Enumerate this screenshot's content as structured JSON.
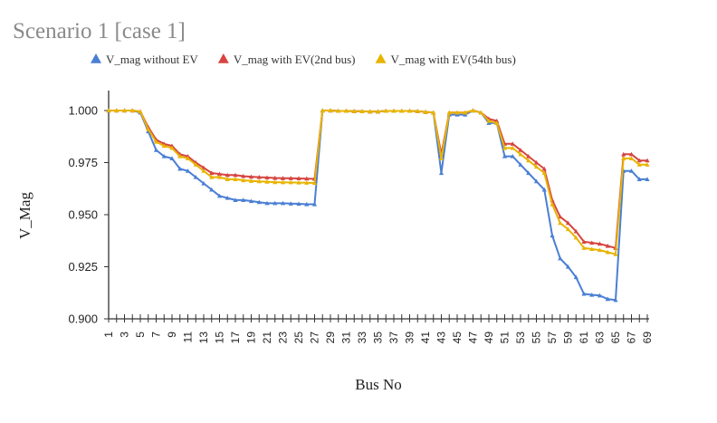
{
  "chart_data": {
    "type": "line",
    "title": "Scenario 1 [case 1]",
    "xlabel": "Bus No",
    "ylabel": "V_Mag",
    "ylim": [
      0.9,
      1.0
    ],
    "yticks": [
      "0.900",
      "0.925",
      "0.950",
      "0.975",
      "1.000"
    ],
    "x": [
      1,
      2,
      3,
      4,
      5,
      6,
      7,
      8,
      9,
      10,
      11,
      12,
      13,
      14,
      15,
      16,
      17,
      18,
      19,
      20,
      21,
      22,
      23,
      24,
      25,
      26,
      27,
      28,
      29,
      30,
      31,
      32,
      33,
      34,
      35,
      36,
      37,
      38,
      39,
      40,
      41,
      42,
      43,
      44,
      45,
      46,
      47,
      48,
      49,
      50,
      51,
      52,
      53,
      54,
      55,
      56,
      57,
      58,
      59,
      60,
      61,
      62,
      63,
      64,
      65,
      66,
      67,
      68,
      69
    ],
    "xtick_labels": [
      "1",
      "3",
      "5",
      "7",
      "9",
      "11",
      "13",
      "15",
      "17",
      "19",
      "21",
      "23",
      "25",
      "27",
      "29",
      "31",
      "33",
      "35",
      "37",
      "39",
      "41",
      "43",
      "45",
      "47",
      "49",
      "51",
      "53",
      "55",
      "57",
      "59",
      "61",
      "63",
      "65",
      "67",
      "69"
    ],
    "legend_position": "top",
    "grid": false,
    "series": [
      {
        "name": "V_mag without EV",
        "color": "#4a7fd4",
        "marker": "triangle",
        "values": [
          1.0,
          1.0,
          1.0,
          1.0,
          0.999,
          0.99,
          0.981,
          0.978,
          0.977,
          0.972,
          0.971,
          0.968,
          0.965,
          0.962,
          0.959,
          0.958,
          0.957,
          0.957,
          0.9565,
          0.956,
          0.9555,
          0.9555,
          0.9555,
          0.9553,
          0.9552,
          0.955,
          0.955,
          1.0,
          1.0,
          0.9998,
          0.9998,
          0.9997,
          0.9996,
          0.9995,
          0.9995,
          0.9998,
          0.9998,
          0.9998,
          0.9998,
          0.9997,
          0.9993,
          0.999,
          0.97,
          0.998,
          0.998,
          0.998,
          1.0,
          0.999,
          0.994,
          0.994,
          0.978,
          0.978,
          0.974,
          0.97,
          0.966,
          0.962,
          0.94,
          0.929,
          0.925,
          0.92,
          0.912,
          0.9115,
          0.9112,
          0.9095,
          0.909,
          0.971,
          0.971,
          0.967,
          0.967
        ]
      },
      {
        "name": "V_mag with EV(2nd bus)",
        "color": "#d64541",
        "marker": "triangle",
        "values": [
          1.0,
          1.0,
          1.0,
          1.0,
          0.9995,
          0.992,
          0.986,
          0.984,
          0.983,
          0.979,
          0.978,
          0.975,
          0.9725,
          0.97,
          0.9695,
          0.969,
          0.969,
          0.9685,
          0.9682,
          0.968,
          0.9678,
          0.9676,
          0.9675,
          0.9675,
          0.9674,
          0.9673,
          0.9672,
          1.0,
          1.0,
          0.9998,
          0.9998,
          0.9997,
          0.9996,
          0.9995,
          0.9995,
          0.9998,
          0.9998,
          0.9998,
          0.9998,
          0.9997,
          0.9993,
          0.999,
          0.979,
          0.999,
          0.999,
          0.999,
          1.0,
          0.999,
          0.996,
          0.995,
          0.984,
          0.984,
          0.981,
          0.978,
          0.975,
          0.972,
          0.957,
          0.949,
          0.946,
          0.942,
          0.937,
          0.9365,
          0.936,
          0.935,
          0.934,
          0.979,
          0.979,
          0.976,
          0.976
        ]
      },
      {
        "name": "V_mag with EV(54th bus)",
        "color": "#e8b400",
        "marker": "triangle",
        "values": [
          1.0,
          1.0,
          1.0,
          1.0,
          0.9995,
          0.991,
          0.985,
          0.983,
          0.982,
          0.978,
          0.977,
          0.974,
          0.971,
          0.968,
          0.968,
          0.967,
          0.967,
          0.9665,
          0.9662,
          0.966,
          0.9658,
          0.9656,
          0.9655,
          0.9655,
          0.9654,
          0.9653,
          0.9652,
          1.0,
          1.0,
          0.9998,
          0.9998,
          0.9997,
          0.9996,
          0.9995,
          0.9995,
          0.9998,
          0.9998,
          0.9998,
          0.9998,
          0.9997,
          0.9993,
          0.999,
          0.977,
          0.999,
          0.999,
          0.999,
          1.0,
          0.999,
          0.995,
          0.994,
          0.982,
          0.982,
          0.979,
          0.976,
          0.973,
          0.97,
          0.955,
          0.946,
          0.943,
          0.939,
          0.934,
          0.9335,
          0.933,
          0.932,
          0.931,
          0.977,
          0.977,
          0.974,
          0.974
        ]
      }
    ]
  }
}
